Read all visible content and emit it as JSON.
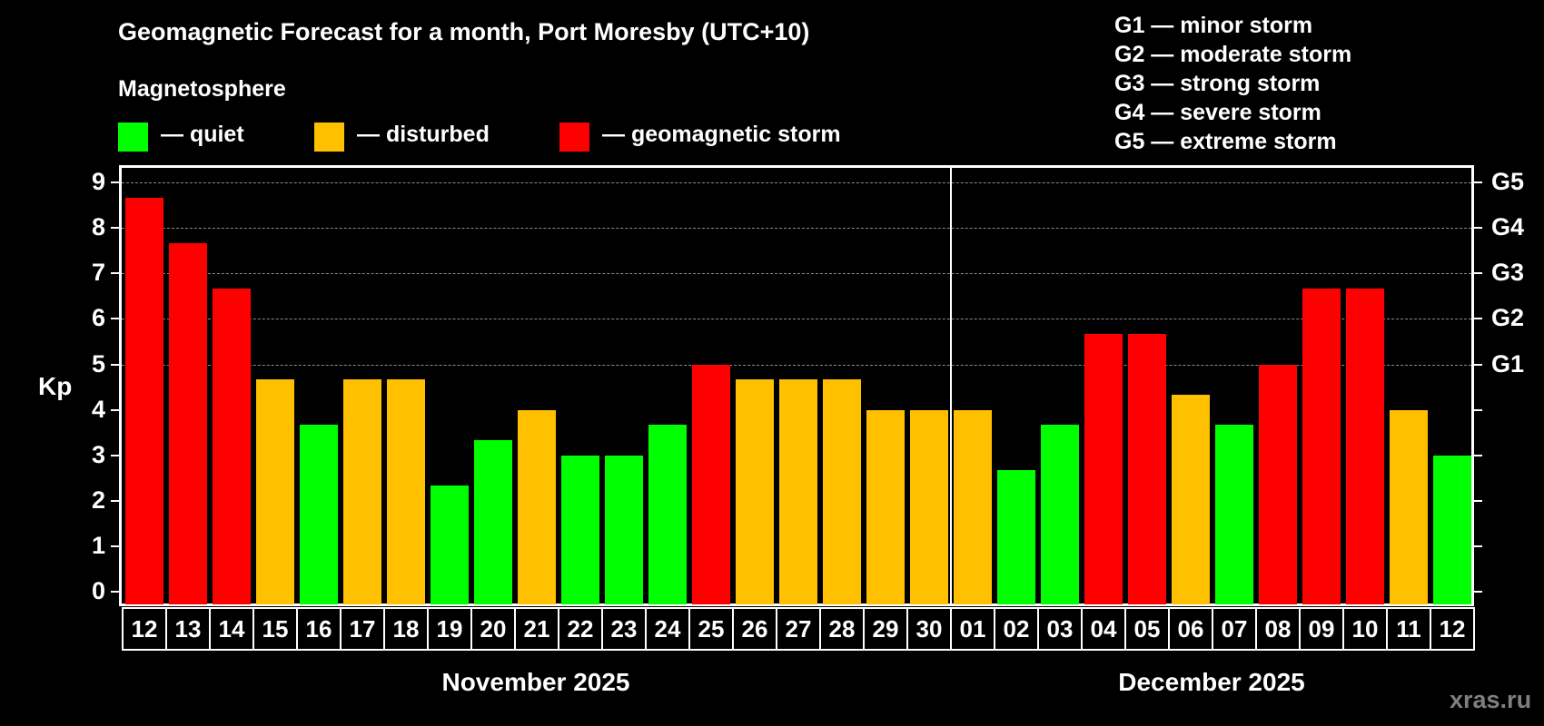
{
  "header": {
    "title": "Geomagnetic Forecast for a month, Port Moresby (UTC+10)",
    "subtitle": "Magnetosphere"
  },
  "legend": [
    {
      "label": "— quiet",
      "color": "#00ff00"
    },
    {
      "label": "— disturbed",
      "color": "#ffc000"
    },
    {
      "label": "— geomagnetic storm",
      "color": "#ff0000"
    }
  ],
  "storm_scale": [
    "G1 — minor storm",
    "G2 — moderate storm",
    "G3 — strong storm",
    "G4 — severe storm",
    "G5 — extreme storm"
  ],
  "axis": {
    "ylabel": "Kp",
    "yticks": [
      "0",
      "1",
      "2",
      "3",
      "4",
      "5",
      "6",
      "7",
      "8",
      "9"
    ],
    "right_labels": [
      {
        "value": 5,
        "label": "G1"
      },
      {
        "value": 6,
        "label": "G2"
      },
      {
        "value": 7,
        "label": "G3"
      },
      {
        "value": 8,
        "label": "G4"
      },
      {
        "value": 9,
        "label": "G5"
      }
    ]
  },
  "months": [
    "November 2025",
    "December 2025"
  ],
  "watermark": "xras.ru",
  "colors": {
    "quiet": "#00ff00",
    "disturbed": "#ffc000",
    "storm": "#ff0000",
    "grid": "#8c8c8c"
  },
  "chart_data": {
    "type": "bar",
    "title": "Geomagnetic Forecast for a month, Port Moresby (UTC+10)",
    "xlabel": "November 2025 / December 2025",
    "ylabel": "Kp",
    "ylim": [
      0,
      9
    ],
    "grid": "dashed horizontal at 5,6,7,8,9",
    "categories": [
      "12",
      "13",
      "14",
      "15",
      "16",
      "17",
      "18",
      "19",
      "20",
      "21",
      "22",
      "23",
      "24",
      "25",
      "26",
      "27",
      "28",
      "29",
      "30",
      "01",
      "02",
      "03",
      "04",
      "05",
      "06",
      "07",
      "08",
      "09",
      "10",
      "11",
      "12"
    ],
    "values": [
      8.67,
      7.67,
      6.67,
      4.67,
      3.67,
      4.67,
      4.67,
      2.33,
      3.33,
      4.0,
      3.0,
      3.0,
      3.67,
      5.0,
      4.67,
      4.67,
      4.67,
      4.0,
      4.0,
      4.0,
      2.67,
      3.67,
      5.67,
      5.67,
      4.33,
      3.67,
      5.0,
      6.67,
      6.67,
      4.0,
      3.0
    ],
    "levels": [
      "storm",
      "storm",
      "storm",
      "disturbed",
      "quiet",
      "disturbed",
      "disturbed",
      "quiet",
      "quiet",
      "disturbed",
      "quiet",
      "quiet",
      "quiet",
      "storm",
      "disturbed",
      "disturbed",
      "disturbed",
      "disturbed",
      "disturbed",
      "disturbed",
      "quiet",
      "quiet",
      "storm",
      "storm",
      "disturbed",
      "quiet",
      "storm",
      "storm",
      "storm",
      "disturbed",
      "quiet"
    ],
    "month_split_index": 19,
    "legend": [
      "quiet",
      "disturbed",
      "geomagnetic storm"
    ]
  }
}
